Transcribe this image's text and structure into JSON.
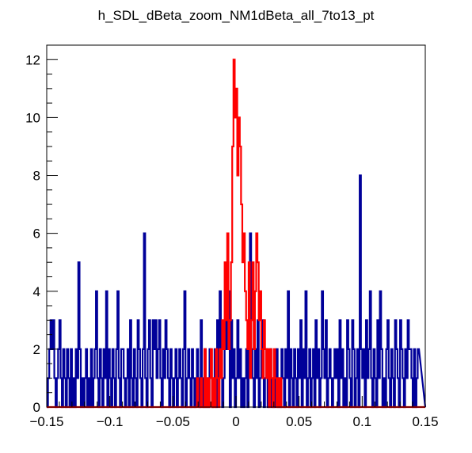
{
  "chart_data": {
    "type": "histogram",
    "title": "h_SDL_dBeta_zoom_NM1dBeta_all_7to13_pt",
    "xlim": [
      -0.15,
      0.15
    ],
    "ylim": [
      0,
      12.5
    ],
    "x_ticks": [
      "-0.15",
      "-0.1",
      "-0.05",
      "0",
      "0.05",
      "0.1",
      "0.15"
    ],
    "y_ticks": [
      "0",
      "2",
      "4",
      "6",
      "8",
      "10",
      "12"
    ],
    "grid": false,
    "legend": "none",
    "bin_width": 0.001,
    "x": [
      -0.149,
      -0.148,
      -0.147,
      -0.146,
      -0.145,
      -0.144,
      -0.143,
      -0.142,
      -0.141,
      -0.14,
      -0.139,
      -0.138,
      -0.137,
      -0.136,
      -0.135,
      -0.134,
      -0.133,
      -0.132,
      -0.131,
      -0.13,
      -0.129,
      -0.128,
      -0.127,
      -0.126,
      -0.125,
      -0.124,
      -0.123,
      -0.122,
      -0.121,
      -0.12,
      -0.119,
      -0.118,
      -0.117,
      -0.116,
      -0.115,
      -0.114,
      -0.113,
      -0.112,
      -0.111,
      -0.11,
      -0.109,
      -0.108,
      -0.107,
      -0.106,
      -0.105,
      -0.104,
      -0.103,
      -0.102,
      -0.101,
      -0.1,
      -0.099,
      -0.098,
      -0.097,
      -0.096,
      -0.095,
      -0.094,
      -0.093,
      -0.092,
      -0.091,
      -0.09,
      -0.089,
      -0.088,
      -0.087,
      -0.086,
      -0.085,
      -0.084,
      -0.083,
      -0.082,
      -0.081,
      -0.08,
      -0.079,
      -0.078,
      -0.077,
      -0.076,
      -0.075,
      -0.074,
      -0.073,
      -0.072,
      -0.071,
      -0.07,
      -0.069,
      -0.068,
      -0.067,
      -0.066,
      -0.065,
      -0.064,
      -0.063,
      -0.062,
      -0.061,
      -0.06,
      -0.059,
      -0.058,
      -0.057,
      -0.056,
      -0.055,
      -0.054,
      -0.053,
      -0.052,
      -0.051,
      -0.05,
      -0.049,
      -0.048,
      -0.047,
      -0.046,
      -0.045,
      -0.044,
      -0.043,
      -0.042,
      -0.041,
      -0.04,
      -0.039,
      -0.038,
      -0.037,
      -0.036,
      -0.035,
      -0.034,
      -0.033,
      -0.032,
      -0.031,
      -0.03,
      -0.029,
      -0.028,
      -0.027,
      -0.026,
      -0.025,
      -0.024,
      -0.023,
      -0.022,
      -0.021,
      -0.02,
      -0.019,
      -0.018,
      -0.017,
      -0.016,
      -0.015,
      -0.014,
      -0.013,
      -0.012,
      -0.011,
      -0.01,
      -0.009,
      -0.008,
      -0.007,
      -0.006,
      -0.005,
      -0.004,
      -0.003,
      -0.002,
      -0.001,
      0.0,
      0.001,
      0.002,
      0.003,
      0.004,
      0.005,
      0.006,
      0.007,
      0.008,
      0.009,
      0.01,
      0.011,
      0.012,
      0.013,
      0.014,
      0.015,
      0.016,
      0.017,
      0.018,
      0.019,
      0.02,
      0.021,
      0.022,
      0.023,
      0.024,
      0.025,
      0.026,
      0.027,
      0.028,
      0.029,
      0.03,
      0.031,
      0.032,
      0.033,
      0.034,
      0.035,
      0.036,
      0.037,
      0.038,
      0.039,
      0.04,
      0.041,
      0.042,
      0.043,
      0.044,
      0.045,
      0.046,
      0.047,
      0.048,
      0.049,
      0.05,
      0.051,
      0.052,
      0.053,
      0.054,
      0.055,
      0.056,
      0.057,
      0.058,
      0.059,
      0.06,
      0.061,
      0.062,
      0.063,
      0.064,
      0.065,
      0.066,
      0.067,
      0.068,
      0.069,
      0.07,
      0.071,
      0.072,
      0.073,
      0.074,
      0.075,
      0.076,
      0.077,
      0.078,
      0.079,
      0.08,
      0.081,
      0.082,
      0.083,
      0.084,
      0.085,
      0.086,
      0.087,
      0.088,
      0.089,
      0.09,
      0.091,
      0.092,
      0.093,
      0.094,
      0.095,
      0.096,
      0.097,
      0.098,
      0.099,
      0.1,
      0.101,
      0.102,
      0.103,
      0.104,
      0.105,
      0.106,
      0.107,
      0.108,
      0.109,
      0.11,
      0.111,
      0.112,
      0.113,
      0.114,
      0.115,
      0.116,
      0.117,
      0.118,
      0.119,
      0.12,
      0.121,
      0.122,
      0.123,
      0.124,
      0.125,
      0.126,
      0.127,
      0.128,
      0.129,
      0.13,
      0.131,
      0.132,
      0.133,
      0.134,
      0.135,
      0.136,
      0.137,
      0.138,
      0.139,
      0.14,
      0.141,
      0.142,
      0.143,
      0.144,
      0.145,
      0.146,
      0.147,
      0.148,
      0.149,
      0.15
    ],
    "series": [
      {
        "color": "#000099",
        "values": [
          0,
          1,
          2,
          3,
          2,
          3,
          1,
          0,
          1,
          2,
          3,
          1,
          0,
          2,
          1,
          0,
          2,
          1,
          0,
          2,
          0,
          1,
          0,
          2,
          1,
          5,
          2,
          0,
          1,
          0,
          1,
          2,
          0,
          1,
          0,
          2,
          0,
          1,
          2,
          4,
          1,
          0,
          2,
          1,
          0,
          2,
          1,
          4,
          0,
          2,
          1,
          0,
          2,
          1,
          0,
          2,
          4,
          1,
          0,
          2,
          2,
          1,
          0,
          1,
          2,
          0,
          3,
          1,
          0,
          2,
          1,
          0,
          3,
          2,
          1,
          0,
          2,
          6,
          1,
          0,
          2,
          3,
          1,
          0,
          3,
          2,
          3,
          1,
          2,
          3,
          1,
          0,
          2,
          1,
          3,
          2,
          1,
          0,
          2,
          1,
          0,
          1,
          2,
          0,
          1,
          2,
          1,
          0,
          2,
          4,
          0,
          1,
          2,
          1,
          0,
          2,
          1,
          0,
          1,
          2,
          1,
          0,
          3,
          1,
          0,
          2,
          0,
          1,
          0,
          2,
          1,
          0,
          1,
          2,
          0,
          3,
          1,
          4,
          2,
          0,
          1,
          2,
          3,
          2,
          4,
          0,
          3,
          1,
          2,
          0,
          1,
          3,
          1,
          2,
          0,
          1,
          0,
          1,
          2,
          0,
          3,
          6,
          2,
          1,
          0,
          2,
          1,
          3,
          0,
          1,
          2,
          3,
          0,
          1,
          2,
          0,
          1,
          2,
          0,
          1,
          0,
          1,
          2,
          0,
          1,
          0,
          2,
          1,
          0,
          2,
          1,
          4,
          0,
          2,
          1,
          0,
          2,
          1,
          0,
          2,
          1,
          3,
          0,
          2,
          1,
          4,
          0,
          1,
          2,
          0,
          1,
          2,
          0,
          3,
          1,
          2,
          0,
          1,
          4,
          2,
          1,
          3,
          0,
          1,
          2,
          1,
          0,
          1,
          2,
          1,
          2,
          0,
          3,
          1,
          2,
          0,
          1,
          0,
          3,
          2,
          1,
          0,
          3,
          2,
          0,
          1,
          2,
          0,
          8,
          2,
          1,
          2,
          0,
          3,
          1,
          2,
          4,
          1,
          0,
          2,
          1,
          0,
          3,
          1,
          4,
          2,
          0,
          1,
          0,
          2,
          3,
          1,
          0,
          2,
          1,
          0,
          3,
          2,
          1,
          0,
          3,
          2,
          1,
          0,
          2,
          1,
          3,
          2,
          2,
          1,
          0,
          2,
          0,
          1,
          2
        ]
      },
      {
        "color": "#ff0000",
        "values": [
          0,
          0,
          0,
          0,
          0,
          0,
          0,
          0,
          0,
          0,
          0,
          0,
          0,
          0,
          0,
          0,
          0,
          0,
          0,
          0,
          0,
          0,
          0,
          0,
          0,
          0,
          0,
          0,
          0,
          0,
          0,
          0,
          0,
          0,
          0,
          0,
          0,
          0,
          0,
          0,
          0,
          0,
          0,
          0,
          0,
          0,
          0,
          0,
          0,
          0,
          0,
          0,
          0,
          0,
          0,
          0,
          0,
          0,
          0,
          0,
          0,
          0,
          0,
          0,
          0,
          0,
          0,
          0,
          0,
          0,
          0,
          0,
          0,
          0,
          0,
          0,
          0,
          0,
          0,
          0,
          0,
          0,
          0,
          0,
          0,
          0,
          0,
          0,
          0,
          0,
          0,
          0,
          0,
          0,
          0,
          0,
          0,
          0,
          0,
          0,
          0,
          0,
          0,
          0,
          0,
          0,
          0,
          0,
          0,
          0,
          0,
          0,
          0,
          0,
          0,
          0,
          0,
          0,
          0,
          1,
          0,
          0,
          1,
          0,
          0,
          2,
          0,
          1,
          0,
          1,
          2,
          0,
          1,
          0,
          2,
          1,
          0,
          2,
          1,
          3,
          2,
          5,
          3,
          6,
          2,
          3,
          5,
          9,
          12,
          10,
          11,
          8,
          10,
          9,
          7,
          5,
          6,
          4,
          3,
          2,
          5,
          1,
          3,
          5,
          2,
          4,
          6,
          5,
          3,
          4,
          2,
          1,
          3,
          2,
          1,
          2,
          0,
          2,
          1,
          0,
          2,
          1,
          0,
          1,
          0,
          1,
          0,
          0,
          0,
          0,
          0,
          0,
          0,
          0,
          0,
          0,
          0,
          0,
          0,
          0,
          0,
          0,
          0,
          0,
          0,
          0,
          0,
          0,
          0,
          0,
          0,
          0,
          0,
          0,
          0,
          0,
          0,
          0,
          0,
          0,
          0,
          0,
          0,
          0,
          0,
          0,
          0,
          0,
          0,
          0,
          0,
          0,
          0,
          0,
          0,
          0,
          0,
          0,
          0,
          0,
          0,
          0,
          0,
          0,
          0,
          0,
          0,
          0,
          0,
          0,
          0,
          0,
          0,
          0,
          0,
          0,
          0,
          0,
          0,
          0,
          0,
          0,
          0,
          0,
          0,
          0,
          0,
          0,
          0,
          0,
          0,
          0,
          0,
          0,
          0,
          0,
          0,
          0,
          0,
          0,
          0,
          0,
          0,
          0,
          0,
          0,
          0,
          0,
          0,
          0,
          0,
          0,
          0
        ]
      }
    ]
  }
}
